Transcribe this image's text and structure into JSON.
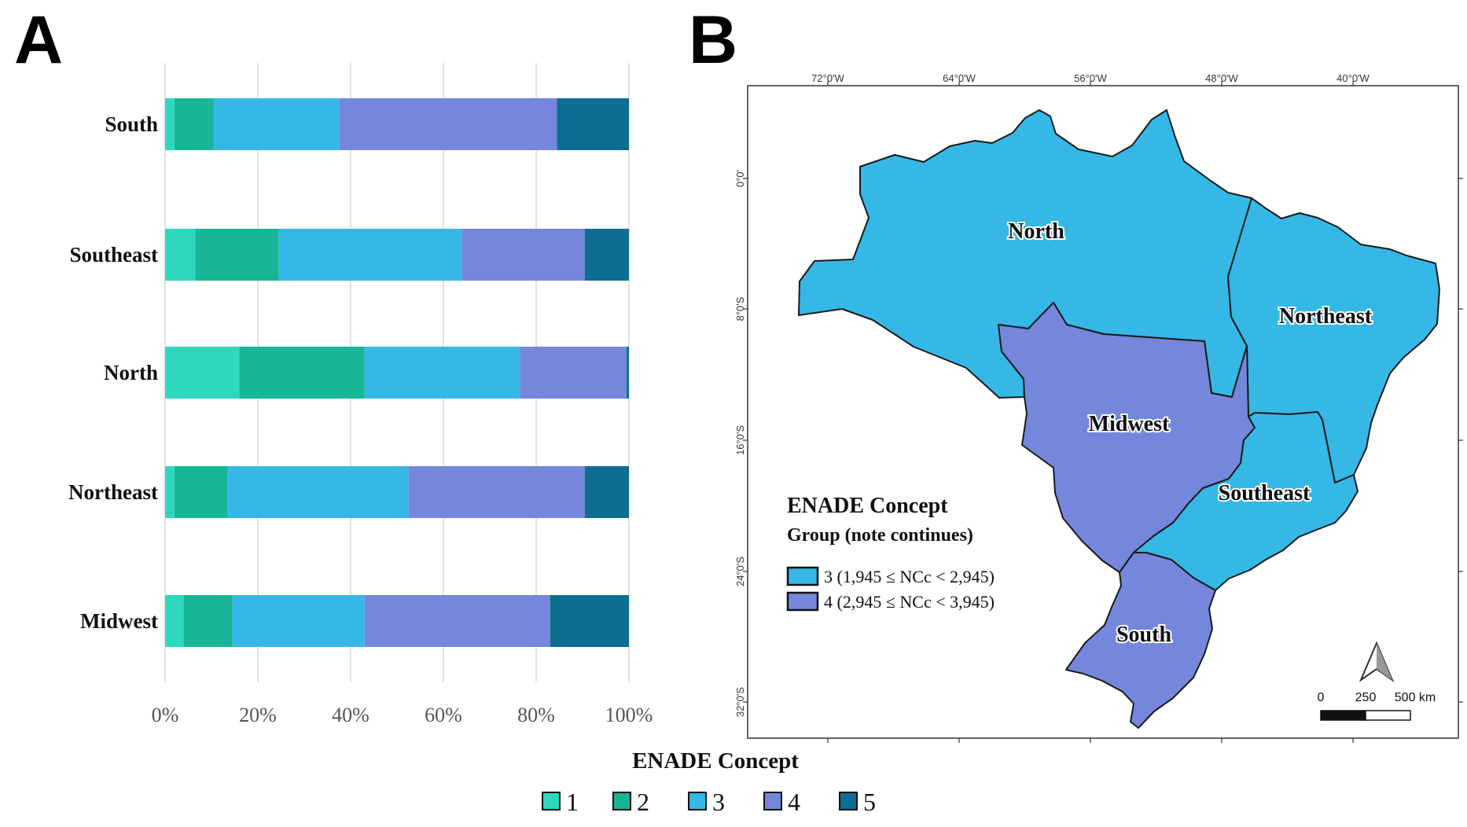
{
  "panels": {
    "a_label": "A",
    "b_label": "B"
  },
  "chart_data": {
    "type": "bar",
    "orientation": "horizontal",
    "stacked": true,
    "categories": [
      "South",
      "Southeast",
      "North",
      "Northeast",
      "Midwest"
    ],
    "series": [
      {
        "name": "1",
        "color": "#2ed8be",
        "values": [
          2,
          6.5,
          16,
          2,
          4
        ]
      },
      {
        "name": "2",
        "color": "#17b697",
        "values": [
          8.5,
          18,
          27,
          11.5,
          10.5
        ]
      },
      {
        "name": "3",
        "color": "#35b8e6",
        "values": [
          27,
          39.5,
          33.5,
          39,
          28.5
        ]
      },
      {
        "name": "4",
        "color": "#7487dc",
        "values": [
          47,
          26.5,
          23,
          38,
          40
        ]
      },
      {
        "name": "5",
        "color": "#0d6e91",
        "values": [
          15.5,
          9.5,
          0.5,
          9.5,
          17
        ]
      }
    ],
    "xlim": [
      0,
      100
    ],
    "x_ticks": [
      "0%",
      "20%",
      "40%",
      "60%",
      "80%",
      "100%"
    ],
    "grid": true,
    "legend_title": "ENADE Concept",
    "legend_position": "bottom"
  },
  "map": {
    "lon_labels": [
      "72°0'W",
      "64°0'W",
      "56°0'W",
      "48°0'W",
      "40°0'W"
    ],
    "lat_labels": [
      "0°0'",
      "8°0'S",
      "16°0'S",
      "24°0'S",
      "32°0'S"
    ],
    "regions": [
      {
        "name": "North",
        "group": "3",
        "color": "#35b8e6"
      },
      {
        "name": "Northeast",
        "group": "3",
        "color": "#35b8e6"
      },
      {
        "name": "Midwest",
        "group": "4",
        "color": "#7487dc"
      },
      {
        "name": "Southeast",
        "group": "3",
        "color": "#35b8e6"
      },
      {
        "name": "South",
        "group": "4",
        "color": "#7487dc"
      }
    ],
    "legend": {
      "title": "ENADE Concept",
      "subtitle": "Group (note continues)",
      "items": [
        {
          "label": "3 (1,945 ≤ NCc < 2,945)",
          "color": "#35b8e6"
        },
        {
          "label": "4 (2,945 ≤ NCc < 3,945)",
          "color": "#7487dc"
        }
      ]
    },
    "scale": {
      "labels": [
        "0",
        "250",
        "500 km"
      ]
    }
  }
}
